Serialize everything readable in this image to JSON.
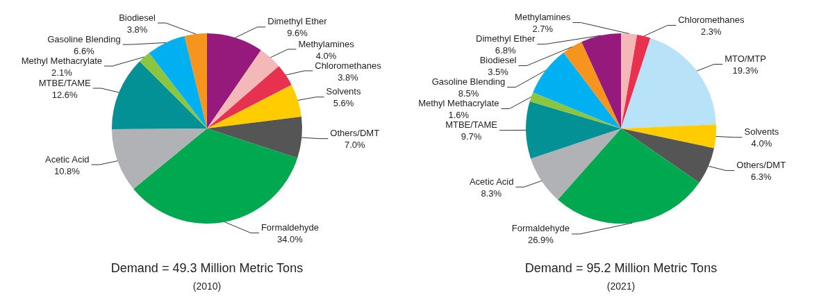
{
  "chart_data": [
    {
      "type": "pie",
      "title": "Demand = 49.3 Million Metric Tons",
      "subtitle": "(2010)",
      "categories": [
        "Dimethyl Ether",
        "Methylamines",
        "Chloromethanes",
        "Solvents",
        "Others/DMT",
        "Formaldehyde",
        "Acetic Acid",
        "MTBE/TAME",
        "Methyl Methacrylate",
        "Gasoline Blending",
        "Biodiesel"
      ],
      "values": [
        9.6,
        4.0,
        3.8,
        5.6,
        7.0,
        34.0,
        10.8,
        12.6,
        2.1,
        6.6,
        3.8
      ],
      "value_labels": [
        "9.6%",
        "4.0%",
        "3.8%",
        "5.6%",
        "7.0%",
        "34.0%",
        "10.8%",
        "12.6%",
        "2.1%",
        "6.6%",
        "3.8%"
      ],
      "colors": [
        "#951a7b",
        "#f4b8b8",
        "#e8304f",
        "#ffcc00",
        "#555555",
        "#00a84f",
        "#b1b2b5",
        "#049196",
        "#8cc63f",
        "#00b0f0",
        "#f7941d"
      ]
    },
    {
      "type": "pie",
      "title": "Demand = 95.2 Million Metric Tons",
      "subtitle": "(2021)",
      "categories": [
        "Methylamines",
        "Chloromethanes",
        "MTO/MTP",
        "Solvents",
        "Others/DMT",
        "Formaldehyde",
        "Acetic Acid",
        "MTBE/TAME",
        "Methyl Methacrylate",
        "Gasoline Blending",
        "Biodiesel",
        "Dimethyl Ether"
      ],
      "values": [
        2.7,
        2.3,
        19.3,
        4.0,
        6.3,
        26.9,
        8.3,
        9.7,
        1.6,
        8.5,
        3.5,
        6.8
      ],
      "value_labels": [
        "2.7%",
        "2.3%",
        "19.3%",
        "4.0%",
        "6.3%",
        "26.9%",
        "8.3%",
        "9.7%",
        "1.6%",
        "8.5%",
        "3.5%",
        "6.8%"
      ],
      "colors": [
        "#f4b8b8",
        "#e8304f",
        "#b8e2f8",
        "#ffcc00",
        "#555555",
        "#00a84f",
        "#b1b2b5",
        "#049196",
        "#8cc63f",
        "#00b0f0",
        "#f7941d",
        "#951a7b"
      ]
    }
  ]
}
